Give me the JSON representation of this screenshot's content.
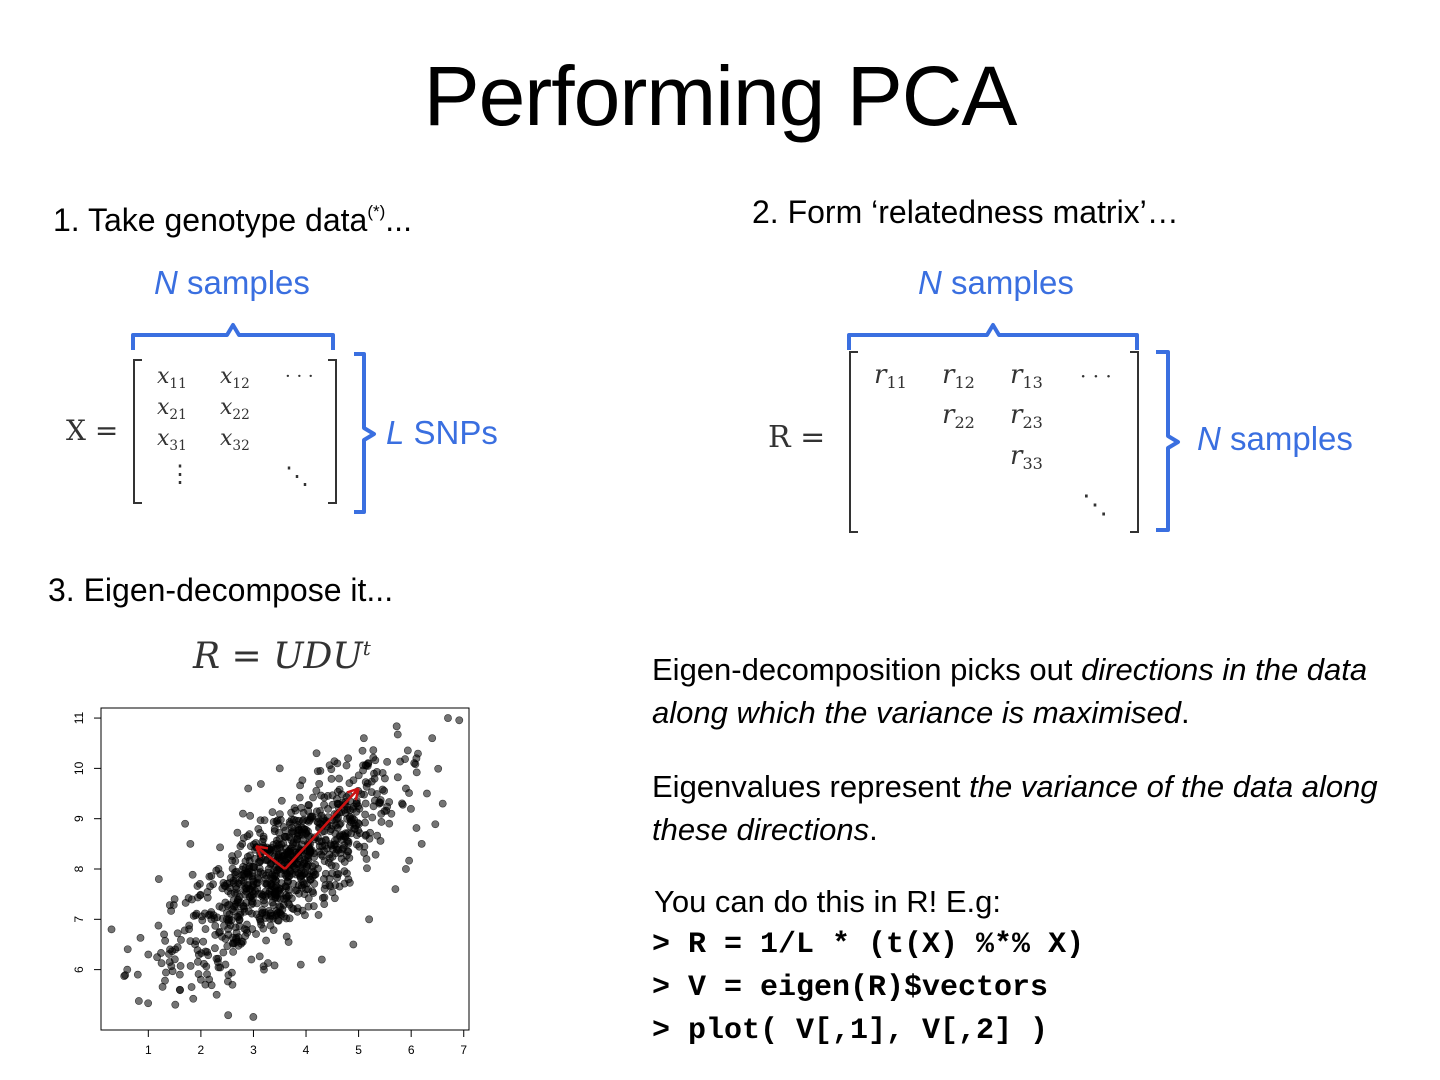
{
  "slide": {
    "title": "Performing PCA",
    "step1": {
      "text": "1. Take genotype data",
      "sup": "(*)",
      "tail": "..."
    },
    "step2": {
      "text": "2. Form ‘relatedness matrix’…"
    },
    "step3": {
      "text": "3. Eigen-decompose it..."
    },
    "matrix_x": {
      "lhs": "X =",
      "top_brace_label_var": "N",
      "top_brace_label_text": " samples",
      "side_brace_label_var": "L",
      "side_brace_label_text": " SNPs",
      "cells": [
        {
          "v": "x",
          "s": "11"
        },
        {
          "v": "x",
          "s": "12"
        },
        {
          "v": "x",
          "s": "21"
        },
        {
          "v": "x",
          "s": "22"
        },
        {
          "v": "x",
          "s": "31"
        },
        {
          "v": "x",
          "s": "32"
        }
      ],
      "dots_h": "· · ·",
      "dots_v": "⋮",
      "dots_d": "⋱"
    },
    "matrix_r": {
      "lhs": "R =",
      "top_brace_label_var": "N",
      "top_brace_label_text": " samples",
      "side_brace_label_var": "N",
      "side_brace_label_text": " samples",
      "cells": [
        {
          "v": "r",
          "s": "11"
        },
        {
          "v": "r",
          "s": "12"
        },
        {
          "v": "r",
          "s": "13"
        },
        {
          "v": "r",
          "s": "22"
        },
        {
          "v": "r",
          "s": "23"
        },
        {
          "v": "r",
          "s": "33"
        }
      ],
      "dots_h": "· · ·",
      "dots_d": "⋱"
    },
    "eigen_formula": {
      "lhs": "R = UDU",
      "sup": "t"
    },
    "para1": {
      "a": "Eigen-decomposition picks out ",
      "b": "directions in the data along which the variance is maximised",
      "c": "."
    },
    "para2": {
      "a": "Eigenvalues represent ",
      "b": "the variance of the data along these directions",
      "c": "."
    },
    "para3": {
      "text": "You can do this in R!  E.g:"
    },
    "code": [
      "> R = 1/L * (t(X) %*% X)",
      "> V = eigen(R)$vectors",
      "> plot( V[,1], V[,2] )"
    ],
    "accent_blue": "#3a6fe0",
    "arrow_red": "#cc1111"
  },
  "chart_data": {
    "type": "scatter",
    "title": "",
    "xlabel": "",
    "ylabel": "",
    "xlim": [
      0.1,
      7.1
    ],
    "ylim": [
      4.8,
      11.2
    ],
    "x_ticks": [
      1,
      2,
      3,
      4,
      5,
      6,
      7
    ],
    "y_ticks": [
      6,
      7,
      8,
      9,
      10,
      11
    ],
    "grid": false,
    "point_color": "#000000",
    "point_count": 900,
    "mean": [
      3.6,
      8.0
    ],
    "series": [
      {
        "points": [
          [
            0.3,
            6.8
          ],
          [
            0.6,
            6.0
          ],
          [
            0.8,
            5.9
          ],
          [
            1.0,
            6.3
          ],
          [
            1.3,
            6.7
          ],
          [
            1.6,
            5.9
          ],
          [
            2.0,
            5.8
          ],
          [
            2.3,
            5.5
          ],
          [
            2.6,
            5.7
          ],
          [
            1.8,
            8.5
          ],
          [
            1.7,
            8.9
          ],
          [
            2.9,
            9.6
          ],
          [
            3.5,
            10.0
          ],
          [
            4.2,
            10.3
          ],
          [
            4.8,
            10.2
          ],
          [
            5.1,
            10.6
          ],
          [
            5.5,
            9.8
          ],
          [
            5.9,
            9.6
          ],
          [
            6.1,
            10.2
          ],
          [
            6.4,
            10.6
          ],
          [
            6.7,
            11.0
          ],
          [
            6.6,
            9.3
          ],
          [
            6.3,
            9.5
          ],
          [
            6.2,
            8.5
          ],
          [
            5.9,
            8.0
          ],
          [
            5.7,
            7.6
          ],
          [
            5.2,
            7.0
          ],
          [
            4.9,
            6.5
          ],
          [
            4.3,
            6.2
          ],
          [
            3.9,
            6.1
          ],
          [
            3.2,
            6.0
          ],
          [
            2.6,
            7.2
          ],
          [
            2.2,
            7.0
          ],
          [
            1.5,
            7.4
          ],
          [
            1.2,
            7.8
          ],
          [
            2.8,
            9.1
          ],
          [
            4.6,
            9.3
          ],
          [
            4.0,
            8.7
          ],
          [
            3.0,
            7.5
          ],
          [
            3.3,
            8.4
          ]
        ]
      }
    ],
    "arrows": [
      {
        "from": [
          3.6,
          8.0
        ],
        "to": [
          5.0,
          9.6
        ]
      },
      {
        "from": [
          3.6,
          8.0
        ],
        "to": [
          3.05,
          8.45
        ]
      }
    ]
  }
}
